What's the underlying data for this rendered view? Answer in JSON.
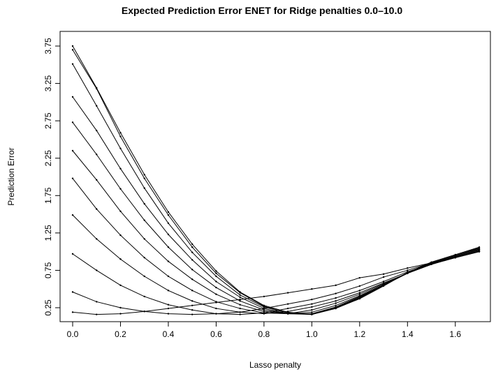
{
  "chart_data": {
    "type": "line",
    "title": "Expected Prediction Error ENET for Ridge penalties 0.0–10.0",
    "xlabel": "Lasso penalty",
    "ylabel": "Prediction Error",
    "x": [
      0.0,
      0.1,
      0.2,
      0.3,
      0.4,
      0.5,
      0.6,
      0.7,
      0.8,
      0.9,
      1.0,
      1.1,
      1.2,
      1.3,
      1.4,
      1.5,
      1.6,
      1.7
    ],
    "xticks": [
      "0.0",
      "0.2",
      "0.4",
      "0.6",
      "0.8",
      "1.0",
      "1.2",
      "1.4",
      "1.6"
    ],
    "yticks": [
      "0.25",
      "0.75",
      "1.25",
      "1.75",
      "2.25",
      "2.75",
      "3.25",
      "3.75"
    ],
    "xlim": [
      0.0,
      1.7
    ],
    "ylim": [
      0.25,
      3.75
    ],
    "grid": false,
    "legend": "none",
    "series": [
      {
        "values": [
          0.19,
          0.16,
          0.17,
          0.2,
          0.24,
          0.28,
          0.32,
          0.36,
          0.4,
          0.45,
          0.5,
          0.55,
          0.65,
          0.7,
          0.78,
          0.85,
          0.93,
          1.03
        ]
      },
      {
        "values": [
          0.46,
          0.33,
          0.25,
          0.2,
          0.17,
          0.16,
          0.17,
          0.19,
          0.24,
          0.3,
          0.36,
          0.44,
          0.54,
          0.66,
          0.75,
          0.85,
          0.92,
          1.0
        ]
      },
      {
        "values": [
          0.97,
          0.75,
          0.55,
          0.4,
          0.29,
          0.22,
          0.17,
          0.16,
          0.18,
          0.24,
          0.3,
          0.38,
          0.48,
          0.6,
          0.73,
          0.84,
          0.92,
          1.0
        ]
      },
      {
        "values": [
          1.49,
          1.17,
          0.9,
          0.67,
          0.48,
          0.34,
          0.24,
          0.19,
          0.17,
          0.2,
          0.26,
          0.34,
          0.45,
          0.58,
          0.71,
          0.83,
          0.92,
          1.0
        ]
      },
      {
        "values": [
          1.98,
          1.57,
          1.22,
          0.92,
          0.67,
          0.48,
          0.33,
          0.24,
          0.18,
          0.17,
          0.22,
          0.31,
          0.43,
          0.57,
          0.71,
          0.83,
          0.92,
          1.01
        ]
      },
      {
        "values": [
          2.35,
          1.96,
          1.54,
          1.17,
          0.87,
          0.63,
          0.43,
          0.29,
          0.2,
          0.17,
          0.19,
          0.28,
          0.41,
          0.56,
          0.71,
          0.83,
          0.93,
          1.02
        ]
      },
      {
        "values": [
          2.73,
          2.3,
          1.84,
          1.42,
          1.06,
          0.76,
          0.52,
          0.34,
          0.22,
          0.17,
          0.17,
          0.26,
          0.4,
          0.55,
          0.71,
          0.84,
          0.93,
          1.03
        ]
      },
      {
        "values": [
          3.07,
          2.62,
          2.11,
          1.64,
          1.23,
          0.89,
          0.6,
          0.39,
          0.24,
          0.17,
          0.16,
          0.25,
          0.39,
          0.55,
          0.71,
          0.84,
          0.94,
          1.03
        ]
      },
      {
        "values": [
          3.51,
          2.95,
          2.38,
          1.85,
          1.38,
          0.99,
          0.67,
          0.42,
          0.26,
          0.18,
          0.16,
          0.25,
          0.38,
          0.55,
          0.72,
          0.85,
          0.95,
          1.04
        ]
      },
      {
        "values": [
          3.7,
          3.18,
          2.54,
          1.98,
          1.49,
          1.06,
          0.71,
          0.45,
          0.27,
          0.18,
          0.16,
          0.24,
          0.38,
          0.55,
          0.72,
          0.85,
          0.95,
          1.05
        ]
      },
      {
        "values": [
          3.75,
          3.19,
          2.59,
          2.03,
          1.53,
          1.1,
          0.74,
          0.46,
          0.28,
          0.19,
          0.16,
          0.24,
          0.37,
          0.54,
          0.72,
          0.86,
          0.96,
          1.06
        ]
      }
    ]
  }
}
